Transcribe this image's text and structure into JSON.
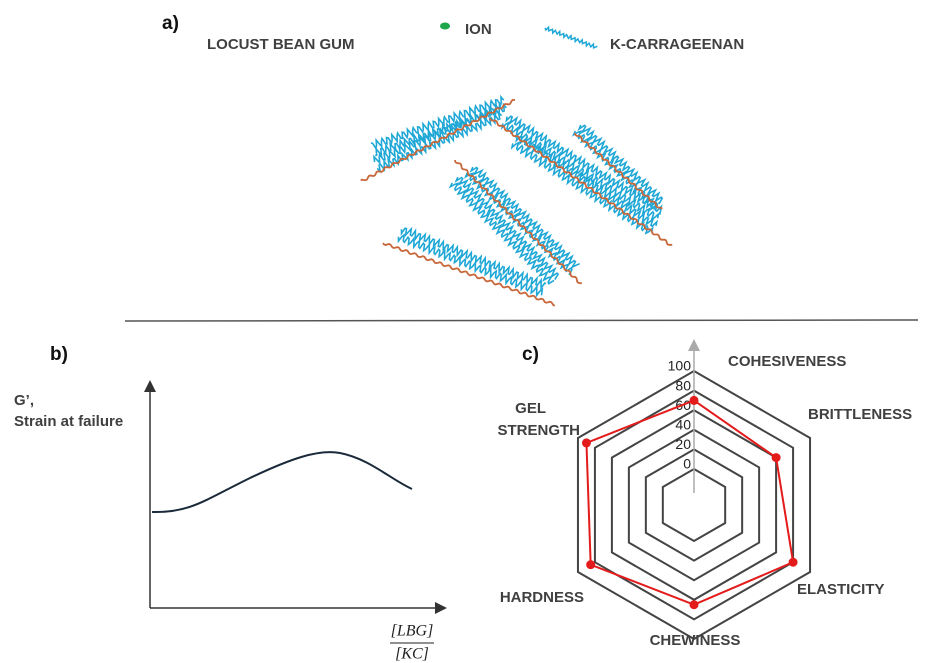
{
  "panel_a": {
    "label": "a)",
    "legend": {
      "locust_bean_gum": "LOCUST BEAN GUM",
      "ion": "ION",
      "carrageenan": "K-CARRAGEENAN"
    }
  },
  "panel_b": {
    "label": "b)",
    "y_label": [
      "G’,",
      "Strain at failure"
    ],
    "x_label": {
      "numerator": "[LBG]",
      "denominator": "[KC]"
    }
  },
  "panel_c": {
    "label": "c)",
    "chart_data": {
      "type": "radar",
      "categories": [
        "COHESIVENESS",
        "BRITTLENESS",
        "ELASTICITY",
        "CHEWINESS",
        "HARDNESS",
        "GEL STRENGTH"
      ],
      "values": [
        70,
        60,
        80,
        65,
        85,
        90
      ],
      "color": "#e31b1b",
      "rlim": [
        0,
        100
      ],
      "rticks": [
        0,
        20,
        40,
        60,
        80,
        100
      ]
    }
  }
}
